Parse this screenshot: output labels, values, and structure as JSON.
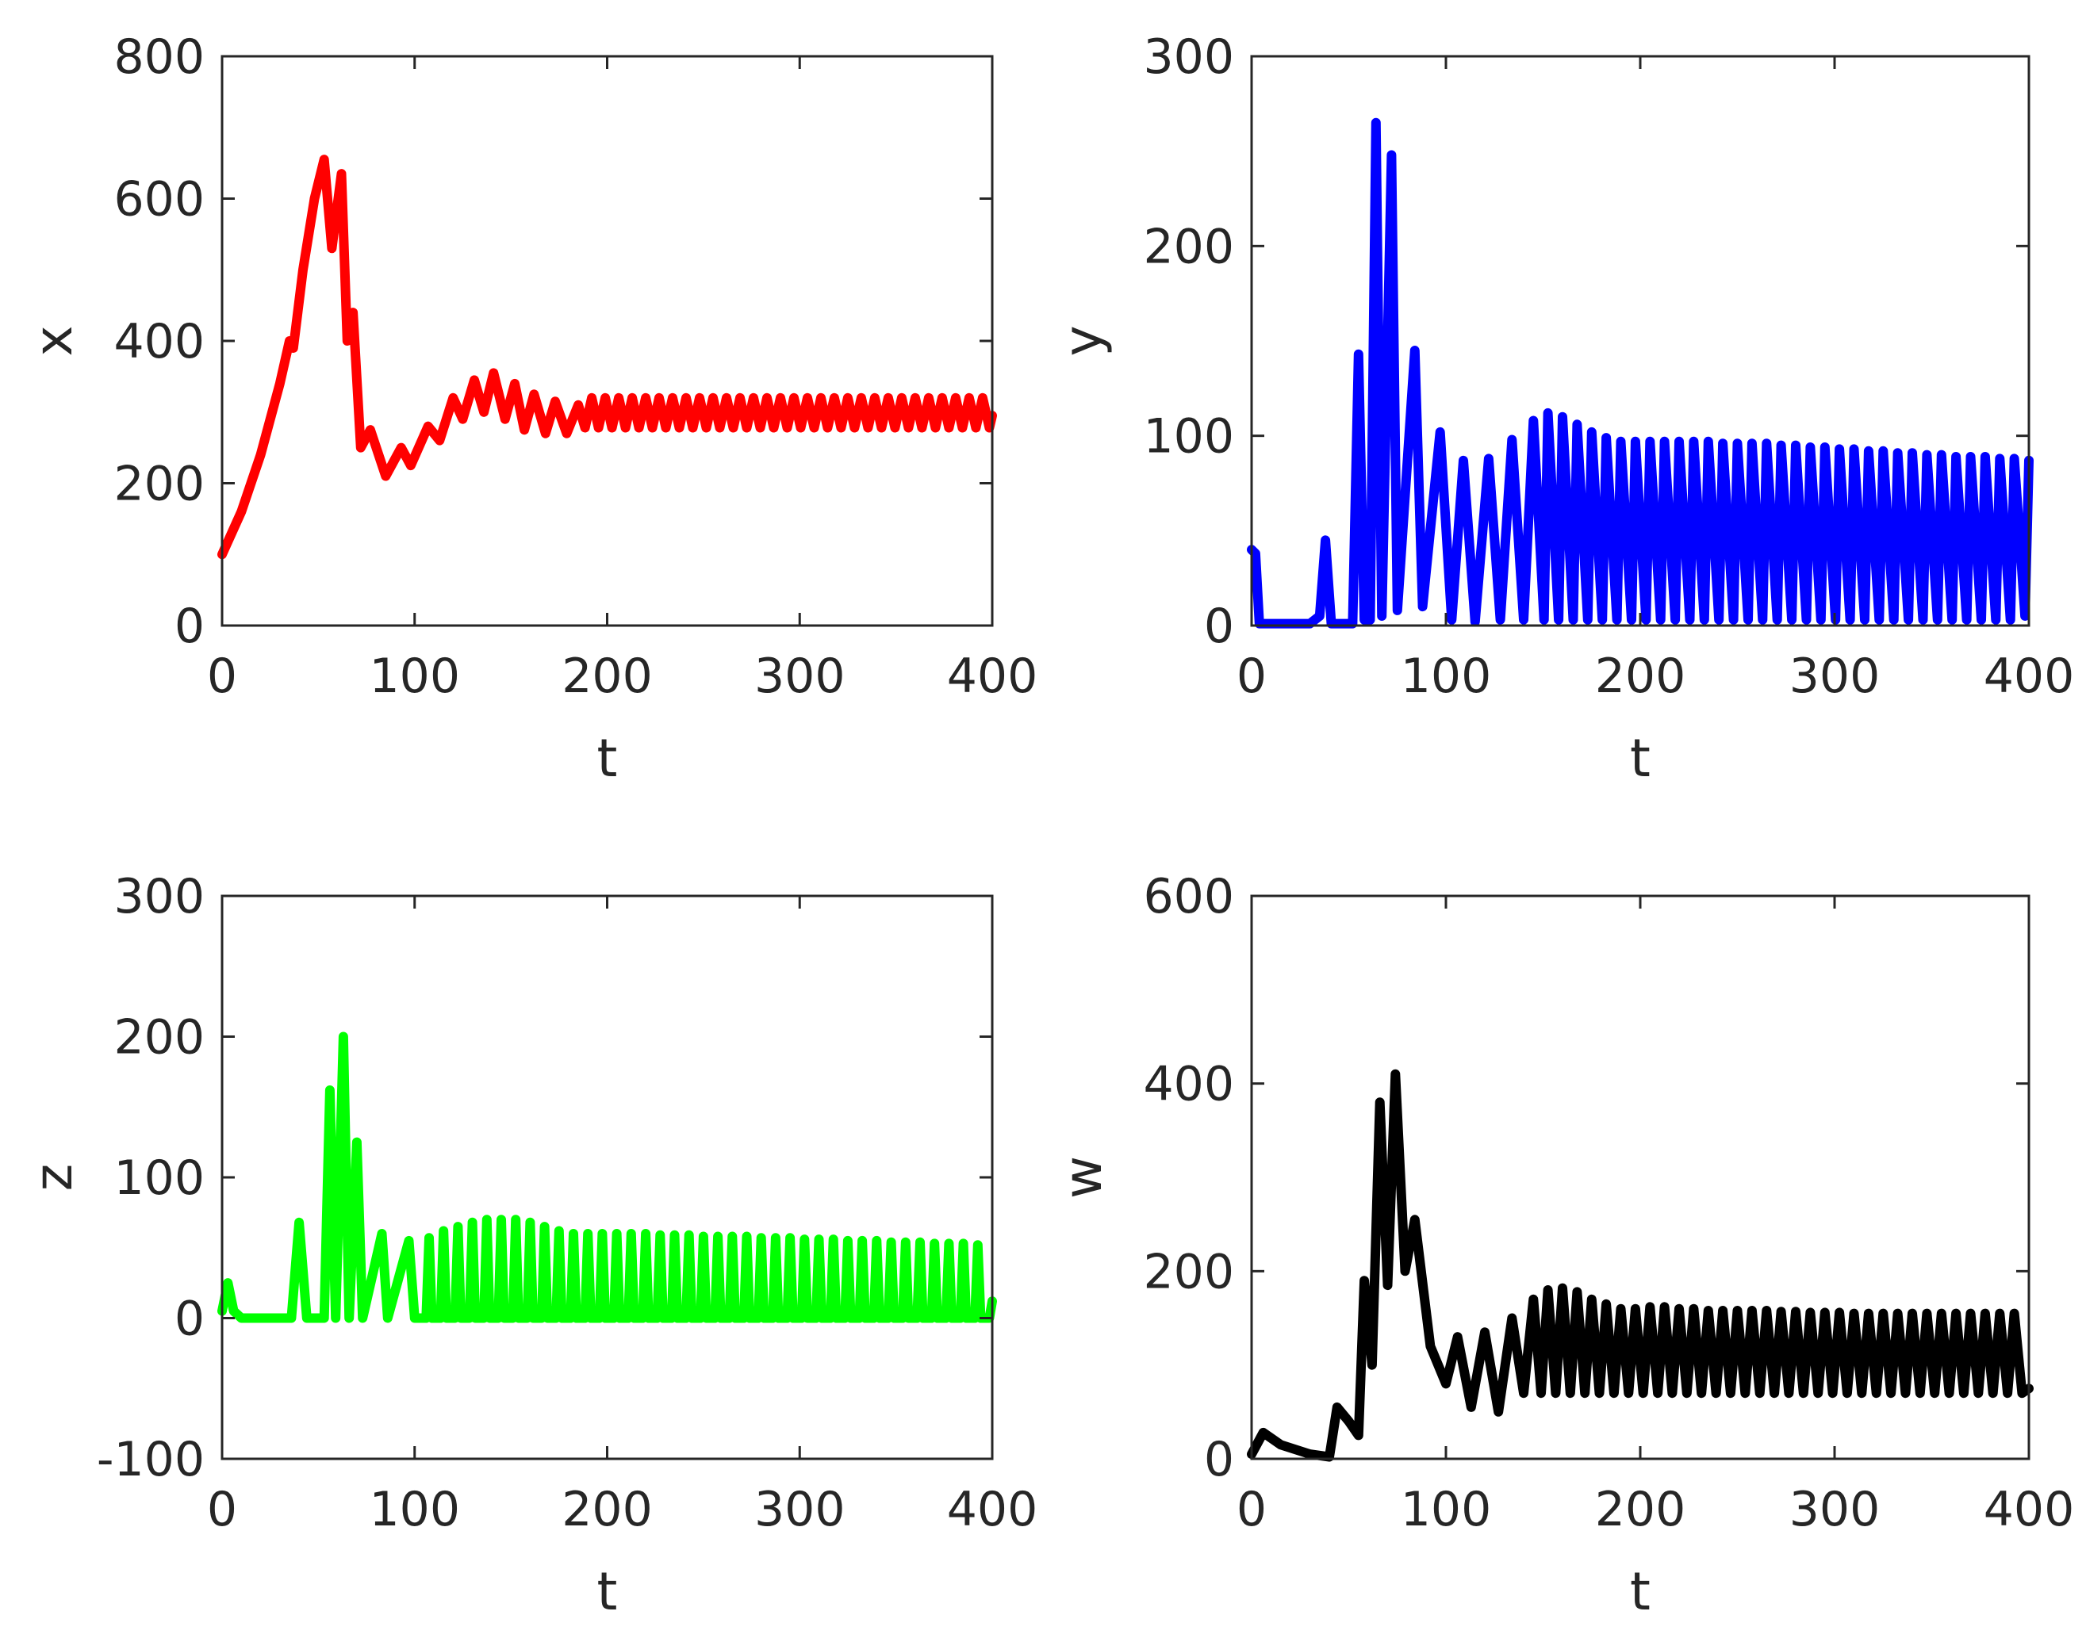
{
  "chart_data": [
    {
      "type": "line",
      "xlabel": "t",
      "ylabel": "x",
      "xlim": [
        0,
        400
      ],
      "xticks": [
        0,
        100,
        200,
        300,
        400
      ],
      "ylim": [
        0,
        800
      ],
      "yticks": [
        0,
        200,
        400,
        600,
        800
      ],
      "x": [
        0,
        10,
        20,
        30,
        35,
        37,
        42,
        48,
        53,
        57,
        62,
        65,
        68,
        72,
        77,
        85,
        93,
        98,
        107,
        113,
        120,
        125,
        131,
        136,
        141,
        147,
        152,
        157,
        162,
        168,
        173,
        179,
        185,
        188.5,
        192,
        195.5,
        199,
        202.5,
        206,
        209.5,
        213,
        216.5,
        220,
        223.5,
        227,
        230.5,
        234,
        237.5,
        241,
        244.5,
        248,
        251.5,
        255,
        258.5,
        262,
        265.5,
        269,
        272.5,
        276,
        279.5,
        283,
        286.5,
        290,
        293.5,
        297,
        300.5,
        304,
        307.5,
        311,
        314.5,
        318,
        321.5,
        325,
        328.5,
        332,
        335.5,
        339,
        342.5,
        346,
        349.5,
        353,
        356.5,
        360,
        363.5,
        367,
        370.5,
        374,
        377.5,
        381,
        384.5,
        388,
        391.5,
        395,
        398.5,
        400
      ],
      "series": [
        {
          "color": "#ff0000",
          "values": [
            100,
            160,
            240,
            340,
            400,
            390,
            500,
            600,
            655,
            530,
            635,
            400,
            440,
            250,
            275,
            210,
            250,
            225,
            280,
            260,
            320,
            290,
            345,
            300,
            355,
            290,
            340,
            275,
            325,
            270,
            315,
            270,
            310,
            278,
            320,
            278,
            320,
            278,
            320,
            278,
            320,
            278,
            320,
            278,
            320,
            278,
            320,
            278,
            320,
            278,
            320,
            278,
            320,
            278,
            320,
            278,
            320,
            278,
            320,
            278,
            320,
            278,
            320,
            278,
            320,
            278,
            320,
            278,
            320,
            278,
            320,
            278,
            320,
            278,
            320,
            278,
            320,
            278,
            320,
            278,
            320,
            278,
            320,
            278,
            320,
            278,
            320,
            278,
            320,
            278,
            320,
            278,
            320,
            278,
            295
          ]
        }
      ]
    },
    {
      "type": "line",
      "xlabel": "t",
      "ylabel": "y",
      "xlim": [
        0,
        400
      ],
      "xticks": [
        0,
        100,
        200,
        300,
        400
      ],
      "ylim": [
        0,
        300
      ],
      "yticks": [
        0,
        100,
        200,
        300
      ],
      "x": [
        0,
        2,
        4,
        30,
        35,
        38,
        41,
        52,
        55,
        58,
        61,
        64,
        67,
        72,
        75,
        84,
        88,
        97,
        103,
        109,
        115,
        122,
        128,
        134,
        140,
        145,
        150.5,
        152.5,
        158,
        160,
        165.5,
        167.5,
        173,
        175,
        180.5,
        182.5,
        188,
        190,
        195.5,
        197.5,
        203,
        205,
        210.5,
        212.5,
        218,
        220,
        225.5,
        227.5,
        233,
        235,
        240.5,
        242.5,
        248,
        250,
        255.5,
        257.5,
        263,
        265,
        270.5,
        272.5,
        278,
        280,
        285.5,
        287.5,
        293,
        295,
        300.5,
        302.5,
        308,
        310,
        315.5,
        317.5,
        323,
        325,
        330.5,
        332.5,
        338,
        340,
        345.5,
        347.5,
        353,
        355,
        360.5,
        362.5,
        368,
        370,
        375.5,
        377.5,
        383,
        385,
        390.5,
        392.5,
        398,
        400
      ],
      "series": [
        {
          "color": "#0000ff",
          "values": [
            40,
            38,
            1,
            1,
            5,
            45,
            1,
            1,
            143,
            3,
            3,
            265,
            5,
            248,
            8,
            145,
            10,
            102,
            3,
            87,
            2,
            88,
            3,
            98,
            3,
            108,
            3,
            112,
            3,
            110,
            3,
            106,
            3,
            102,
            3,
            99,
            3,
            97,
            3,
            97,
            3,
            97,
            3,
            97,
            3,
            97,
            3,
            97,
            3,
            97,
            3,
            96,
            3,
            96,
            3,
            96,
            3,
            96,
            3,
            95,
            3,
            95,
            3,
            94,
            3,
            94,
            3,
            93,
            3,
            93,
            3,
            92,
            3,
            92,
            3,
            91,
            3,
            91,
            3,
            90,
            3,
            90,
            3,
            89,
            3,
            89,
            3,
            89,
            3,
            88,
            3,
            88,
            5,
            87
          ]
        }
      ]
    },
    {
      "type": "line",
      "xlabel": "t",
      "ylabel": "z",
      "xlim": [
        0,
        400
      ],
      "xticks": [
        0,
        100,
        200,
        300,
        400
      ],
      "ylim": [
        -100,
        300
      ],
      "yticks": [
        -100,
        0,
        100,
        200,
        300
      ],
      "x": [
        0,
        3,
        6,
        10,
        36,
        40,
        44,
        53,
        56,
        59,
        63,
        66,
        70,
        73,
        83,
        86,
        97,
        100,
        106,
        107.5,
        109,
        113.5,
        115,
        116.5,
        121,
        122.5,
        124,
        128.5,
        130,
        131.5,
        136,
        137.5,
        139,
        143.5,
        145,
        146.5,
        151,
        152.5,
        154,
        158.5,
        160,
        161.5,
        166,
        167.5,
        169,
        173.5,
        175,
        176.5,
        181,
        182.5,
        184,
        188.5,
        190,
        191.5,
        196,
        197.5,
        199,
        203.5,
        205,
        206.5,
        211,
        212.5,
        214,
        218.5,
        220,
        221.5,
        226,
        227.5,
        229,
        233.5,
        235,
        236.5,
        241,
        242.5,
        244,
        248.5,
        250,
        251.5,
        256,
        257.5,
        259,
        263.5,
        265,
        266.5,
        271,
        272.5,
        274,
        278.5,
        280,
        281.5,
        286,
        287.5,
        289,
        293.5,
        295,
        296.5,
        301,
        302.5,
        304,
        308.5,
        310,
        311.5,
        316,
        317.5,
        319,
        323.5,
        325,
        326.5,
        331,
        332.5,
        334,
        338.5,
        340,
        341.5,
        346,
        347.5,
        349,
        353.5,
        355,
        356.5,
        361,
        362.5,
        364,
        368.5,
        370,
        371.5,
        376,
        377.5,
        379,
        383.5,
        385,
        386.5,
        391,
        392.5,
        394,
        398.5,
        400
      ],
      "series": [
        {
          "color": "#00ff00",
          "values": [
            5,
            25,
            5,
            0,
            0,
            68,
            0,
            0,
            162,
            0,
            200,
            0,
            125,
            0,
            60,
            0,
            55,
            0,
            0,
            57,
            0,
            0,
            62,
            0,
            0,
            65,
            0,
            0,
            68,
            0,
            0,
            70,
            0,
            0,
            70,
            0,
            0,
            70,
            0,
            0,
            68,
            0,
            0,
            65,
            0,
            0,
            62,
            0,
            0,
            60,
            0,
            0,
            60,
            0,
            0,
            60,
            0,
            0,
            60,
            0,
            0,
            60,
            0,
            0,
            60,
            0,
            0,
            59,
            0,
            0,
            59,
            0,
            0,
            59,
            0,
            0,
            58,
            0,
            0,
            58,
            0,
            0,
            58,
            0,
            0,
            58,
            0,
            0,
            57,
            0,
            0,
            57,
            0,
            0,
            57,
            0,
            0,
            56,
            0,
            0,
            56,
            0,
            0,
            56,
            0,
            0,
            55,
            0,
            0,
            55,
            0,
            0,
            55,
            0,
            0,
            54,
            0,
            0,
            54,
            0,
            0,
            54,
            0,
            0,
            53,
            0,
            0,
            53,
            0,
            0,
            53,
            0,
            0,
            52,
            0,
            0,
            12
          ]
        }
      ]
    },
    {
      "type": "line",
      "xlabel": "t",
      "ylabel": "w",
      "xlim": [
        0,
        400
      ],
      "xticks": [
        0,
        100,
        200,
        300,
        400
      ],
      "ylim": [
        0,
        600
      ],
      "yticks": [
        0,
        200,
        400,
        600
      ],
      "x": [
        0,
        6,
        15,
        30,
        40,
        44,
        50,
        55,
        58,
        62,
        66,
        70,
        74,
        79,
        84,
        92,
        100,
        106,
        113,
        120,
        127,
        134,
        140,
        145,
        149,
        152.5,
        156.5,
        160,
        164,
        167.5,
        171.5,
        175,
        179,
        182.5,
        186.5,
        190,
        194,
        197.5,
        201.5,
        205,
        209,
        212.5,
        216.5,
        220,
        224,
        227.5,
        231.5,
        235,
        239,
        242.5,
        246.5,
        250,
        254,
        257.5,
        261.5,
        265,
        269,
        272.5,
        276.5,
        280,
        284,
        287.5,
        291.5,
        295,
        299,
        302.5,
        306.5,
        310,
        314,
        317.5,
        321.5,
        325,
        329,
        332.5,
        336.5,
        340,
        344,
        347.5,
        351.5,
        355,
        359,
        362.5,
        366.5,
        370,
        374,
        377.5,
        381.5,
        385,
        389,
        392.5,
        396.5,
        400
      ],
      "series": [
        {
          "color": "#000000",
          "values": [
            5,
            28,
            15,
            5,
            2,
            55,
            40,
            25,
            190,
            100,
            380,
            185,
            410,
            200,
            255,
            120,
            80,
            130,
            55,
            135,
            50,
            150,
            70,
            170,
            70,
            180,
            70,
            182,
            70,
            178,
            70,
            170,
            70,
            165,
            70,
            160,
            70,
            160,
            70,
            162,
            70,
            162,
            70,
            160,
            70,
            160,
            70,
            158,
            70,
            158,
            70,
            158,
            70,
            158,
            70,
            158,
            70,
            157,
            70,
            157,
            70,
            156,
            70,
            156,
            70,
            156,
            70,
            155,
            70,
            155,
            70,
            155,
            70,
            155,
            70,
            155,
            70,
            155,
            70,
            155,
            70,
            155,
            70,
            155,
            70,
            155,
            70,
            155,
            70,
            155,
            70,
            75
          ]
        }
      ]
    }
  ]
}
